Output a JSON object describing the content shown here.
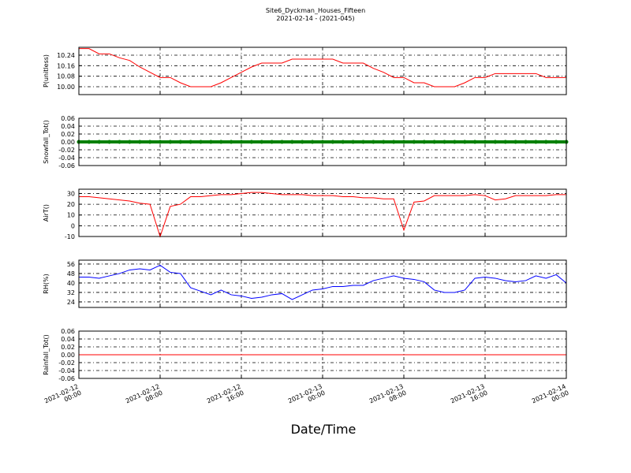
{
  "title": "Site6_Dyckman_Houses_Fifteen",
  "subtitle": "2021-02-14 - (2021-045)",
  "xlabel": "Date/Time",
  "chart_data": [
    {
      "type": "line",
      "ylabel": "P(unitless)",
      "ylim": [
        9.94,
        10.3
      ],
      "yticks": [
        {
          "value": 10.0,
          "label": "10.00"
        },
        {
          "value": 10.08,
          "label": "10.08"
        },
        {
          "value": 10.16,
          "label": "10.16"
        },
        {
          "value": 10.24,
          "label": "10.24"
        }
      ],
      "xlim": [
        "2021-02-12 00:00",
        "2021-02-14 00:00"
      ],
      "grid": true,
      "x": [
        "2021-02-12 00:00",
        "2021-02-12 01:00",
        "2021-02-12 02:00",
        "2021-02-12 03:00",
        "2021-02-12 04:00",
        "2021-02-12 05:00",
        "2021-02-12 06:00",
        "2021-02-12 07:00",
        "2021-02-12 08:00",
        "2021-02-12 09:00",
        "2021-02-12 10:00",
        "2021-02-12 11:00",
        "2021-02-12 12:00",
        "2021-02-12 13:00",
        "2021-02-12 14:00",
        "2021-02-12 15:00",
        "2021-02-12 16:00",
        "2021-02-12 17:00",
        "2021-02-12 18:00",
        "2021-02-12 19:00",
        "2021-02-12 20:00",
        "2021-02-12 21:00",
        "2021-02-12 22:00",
        "2021-02-12 23:00",
        "2021-02-13 00:00",
        "2021-02-13 01:00",
        "2021-02-13 02:00",
        "2021-02-13 03:00",
        "2021-02-13 04:00",
        "2021-02-13 05:00",
        "2021-02-13 06:00",
        "2021-02-13 07:00",
        "2021-02-13 08:00",
        "2021-02-13 09:00",
        "2021-02-13 10:00",
        "2021-02-13 11:00",
        "2021-02-13 12:00",
        "2021-02-13 13:00",
        "2021-02-13 14:00",
        "2021-02-13 15:00",
        "2021-02-13 16:00",
        "2021-02-13 17:00",
        "2021-02-13 18:00",
        "2021-02-13 19:00",
        "2021-02-13 20:00",
        "2021-02-13 21:00",
        "2021-02-13 22:00",
        "2021-02-13 23:00",
        "2021-02-14 00:00"
      ],
      "series": [
        {
          "color": "#ff0000",
          "values": [
            10.29,
            10.29,
            10.25,
            10.25,
            10.22,
            10.2,
            10.15,
            10.11,
            10.07,
            10.07,
            10.03,
            10.0,
            10.0,
            10.0,
            10.03,
            10.07,
            10.11,
            10.15,
            10.18,
            10.18,
            10.18,
            10.21,
            10.21,
            10.21,
            10.21,
            10.21,
            10.18,
            10.18,
            10.18,
            10.14,
            10.11,
            10.07,
            10.07,
            10.03,
            10.03,
            10.0,
            10.0,
            10.0,
            10.03,
            10.07,
            10.07,
            10.1,
            10.1,
            10.1,
            10.1,
            10.1,
            10.07,
            10.07,
            10.07
          ]
        }
      ]
    },
    {
      "type": "scatter",
      "ylabel": "Snowfall_Tot()",
      "ylim": [
        -0.06,
        0.06
      ],
      "yticks": [
        -0.06,
        -0.04,
        -0.02,
        {
          "value": 0,
          "label": "0.00"
        },
        0.02,
        0.04,
        0.06
      ],
      "xlim": [
        "2021-02-12 00:00",
        "2021-02-14 00:00"
      ],
      "grid": true,
      "x": [
        "2021-02-12 00:00",
        "2021-02-12 01:00",
        "2021-02-12 02:00",
        "2021-02-12 03:00",
        "2021-02-12 04:00",
        "2021-02-12 05:00",
        "2021-02-12 06:00",
        "2021-02-12 07:00",
        "2021-02-12 08:00",
        "2021-02-12 09:00",
        "2021-02-12 10:00",
        "2021-02-12 11:00",
        "2021-02-12 12:00",
        "2021-02-12 13:00",
        "2021-02-12 14:00",
        "2021-02-12 15:00",
        "2021-02-12 16:00",
        "2021-02-12 17:00",
        "2021-02-12 18:00",
        "2021-02-12 19:00",
        "2021-02-12 20:00",
        "2021-02-12 21:00",
        "2021-02-12 22:00",
        "2021-02-12 23:00",
        "2021-02-13 00:00",
        "2021-02-13 01:00",
        "2021-02-13 02:00",
        "2021-02-13 03:00",
        "2021-02-13 04:00",
        "2021-02-13 05:00",
        "2021-02-13 06:00",
        "2021-02-13 07:00",
        "2021-02-13 08:00",
        "2021-02-13 09:00",
        "2021-02-13 10:00",
        "2021-02-13 11:00",
        "2021-02-13 12:00",
        "2021-02-13 13:00",
        "2021-02-13 14:00",
        "2021-02-13 15:00",
        "2021-02-13 16:00",
        "2021-02-13 17:00",
        "2021-02-13 18:00",
        "2021-02-13 19:00",
        "2021-02-13 20:00",
        "2021-02-13 21:00",
        "2021-02-13 22:00",
        "2021-02-13 23:00",
        "2021-02-14 00:00"
      ],
      "series": [
        {
          "color": "#008000",
          "values": [
            0,
            0,
            0,
            0,
            0,
            0,
            0,
            0,
            0,
            0,
            0,
            0,
            0,
            0,
            0,
            0,
            0,
            0,
            0,
            0,
            0,
            0,
            0,
            0,
            0,
            0,
            0,
            0,
            0,
            0,
            0,
            0,
            0,
            0,
            0,
            0,
            0,
            0,
            0,
            0,
            0,
            0,
            0,
            0,
            0,
            0,
            0,
            0,
            0
          ]
        }
      ]
    },
    {
      "type": "line",
      "ylabel": "AirT()",
      "ylim": [
        -10,
        34
      ],
      "yticks": [
        -10,
        0,
        10,
        20,
        30
      ],
      "xlim": [
        "2021-02-12 00:00",
        "2021-02-14 00:00"
      ],
      "grid": true,
      "x": [
        "2021-02-12 00:00",
        "2021-02-12 01:00",
        "2021-02-12 02:00",
        "2021-02-12 03:00",
        "2021-02-12 04:00",
        "2021-02-12 05:00",
        "2021-02-12 06:00",
        "2021-02-12 07:00",
        "2021-02-12 08:00",
        "2021-02-12 09:00",
        "2021-02-12 10:00",
        "2021-02-12 11:00",
        "2021-02-12 12:00",
        "2021-02-12 13:00",
        "2021-02-12 14:00",
        "2021-02-12 15:00",
        "2021-02-12 16:00",
        "2021-02-12 17:00",
        "2021-02-12 18:00",
        "2021-02-12 19:00",
        "2021-02-12 20:00",
        "2021-02-12 21:00",
        "2021-02-12 22:00",
        "2021-02-12 23:00",
        "2021-02-13 00:00",
        "2021-02-13 01:00",
        "2021-02-13 02:00",
        "2021-02-13 03:00",
        "2021-02-13 04:00",
        "2021-02-13 05:00",
        "2021-02-13 06:00",
        "2021-02-13 07:00",
        "2021-02-13 08:00",
        "2021-02-13 09:00",
        "2021-02-13 10:00",
        "2021-02-13 11:00",
        "2021-02-13 12:00",
        "2021-02-13 13:00",
        "2021-02-13 14:00",
        "2021-02-13 15:00",
        "2021-02-13 16:00",
        "2021-02-13 17:00",
        "2021-02-13 18:00",
        "2021-02-13 19:00",
        "2021-02-13 20:00",
        "2021-02-13 21:00",
        "2021-02-13 22:00",
        "2021-02-13 23:00",
        "2021-02-14 00:00"
      ],
      "series": [
        {
          "color": "#ff0000",
          "values": [
            27,
            27,
            26,
            25,
            24,
            23,
            21,
            20,
            -10,
            18,
            20,
            27,
            27,
            28,
            29,
            29,
            30,
            31,
            31,
            30,
            29,
            29,
            29,
            28,
            28,
            28,
            27,
            27,
            26,
            26,
            25,
            25,
            -4,
            22,
            23,
            28,
            28,
            28,
            28,
            29,
            28,
            24,
            25,
            28,
            28,
            28,
            28,
            29,
            29
          ]
        }
      ]
    },
    {
      "type": "line",
      "ylabel": "RH(%)",
      "ylim": [
        19.3,
        59.3
      ],
      "yticks": [
        24,
        32,
        40,
        48,
        56
      ],
      "xlim": [
        "2021-02-12 00:00",
        "2021-02-14 00:00"
      ],
      "grid": true,
      "x": [
        "2021-02-12 00:00",
        "2021-02-12 01:00",
        "2021-02-12 02:00",
        "2021-02-12 03:00",
        "2021-02-12 04:00",
        "2021-02-12 05:00",
        "2021-02-12 06:00",
        "2021-02-12 07:00",
        "2021-02-12 08:00",
        "2021-02-12 09:00",
        "2021-02-12 10:00",
        "2021-02-12 11:00",
        "2021-02-12 12:00",
        "2021-02-12 13:00",
        "2021-02-12 14:00",
        "2021-02-12 15:00",
        "2021-02-12 16:00",
        "2021-02-12 17:00",
        "2021-02-12 18:00",
        "2021-02-12 19:00",
        "2021-02-12 20:00",
        "2021-02-12 21:00",
        "2021-02-12 22:00",
        "2021-02-12 23:00",
        "2021-02-13 00:00",
        "2021-02-13 01:00",
        "2021-02-13 02:00",
        "2021-02-13 03:00",
        "2021-02-13 04:00",
        "2021-02-13 05:00",
        "2021-02-13 06:00",
        "2021-02-13 07:00",
        "2021-02-13 08:00",
        "2021-02-13 09:00",
        "2021-02-13 10:00",
        "2021-02-13 11:00",
        "2021-02-13 12:00",
        "2021-02-13 13:00",
        "2021-02-13 14:00",
        "2021-02-13 15:00",
        "2021-02-13 16:00",
        "2021-02-13 17:00",
        "2021-02-13 18:00",
        "2021-02-13 19:00",
        "2021-02-13 20:00",
        "2021-02-13 21:00",
        "2021-02-13 22:00",
        "2021-02-13 23:00",
        "2021-02-14 00:00"
      ],
      "series": [
        {
          "color": "#0000ff",
          "values": [
            45,
            45,
            44,
            46,
            48,
            51,
            52,
            51,
            55,
            49,
            48,
            36,
            33,
            30,
            34,
            30,
            29,
            27,
            28,
            30,
            31,
            26,
            30,
            34,
            35,
            37,
            37,
            38,
            38,
            42,
            44,
            46,
            44,
            43,
            41,
            34,
            32,
            32,
            34,
            44,
            45,
            44,
            42,
            41,
            42,
            46,
            44,
            47,
            40
          ]
        }
      ]
    },
    {
      "type": "line",
      "ylabel": "Rainfall_Tot()",
      "ylim": [
        -0.06,
        0.06
      ],
      "yticks": [
        -0.06,
        -0.04,
        -0.02,
        {
          "value": 0,
          "label": "0.00"
        },
        0.02,
        0.04,
        0.06
      ],
      "xlim": [
        "2021-02-12 00:00",
        "2021-02-14 00:00"
      ],
      "grid": true,
      "xticks": [
        {
          "value": "2021-02-12 00:00",
          "label": "2021-02-12\n00:00"
        },
        {
          "value": "2021-02-12 08:00",
          "label": "2021-02-12\n08:00"
        },
        {
          "value": "2021-02-12 16:00",
          "label": "2021-02-12\n16:00"
        },
        {
          "value": "2021-02-13 00:00",
          "label": "2021-02-13\n00:00"
        },
        {
          "value": "2021-02-13 08:00",
          "label": "2021-02-13\n08:00"
        },
        {
          "value": "2021-02-13 16:00",
          "label": "2021-02-13\n16:00"
        },
        {
          "value": "2021-02-14 00:00",
          "label": "2021-02-14\n00:00"
        }
      ],
      "x": [
        "2021-02-12 00:00",
        "2021-02-12 01:00",
        "2021-02-12 02:00",
        "2021-02-12 03:00",
        "2021-02-12 04:00",
        "2021-02-12 05:00",
        "2021-02-12 06:00",
        "2021-02-12 07:00",
        "2021-02-12 08:00",
        "2021-02-12 09:00",
        "2021-02-12 10:00",
        "2021-02-12 11:00",
        "2021-02-12 12:00",
        "2021-02-12 13:00",
        "2021-02-12 14:00",
        "2021-02-12 15:00",
        "2021-02-12 16:00",
        "2021-02-12 17:00",
        "2021-02-12 18:00",
        "2021-02-12 19:00",
        "2021-02-12 20:00",
        "2021-02-12 21:00",
        "2021-02-12 22:00",
        "2021-02-12 23:00",
        "2021-02-13 00:00",
        "2021-02-13 01:00",
        "2021-02-13 02:00",
        "2021-02-13 03:00",
        "2021-02-13 04:00",
        "2021-02-13 05:00",
        "2021-02-13 06:00",
        "2021-02-13 07:00",
        "2021-02-13 08:00",
        "2021-02-13 09:00",
        "2021-02-13 10:00",
        "2021-02-13 11:00",
        "2021-02-13 12:00",
        "2021-02-13 13:00",
        "2021-02-13 14:00",
        "2021-02-13 15:00",
        "2021-02-13 16:00",
        "2021-02-13 17:00",
        "2021-02-13 18:00",
        "2021-02-13 19:00",
        "2021-02-13 20:00",
        "2021-02-13 21:00",
        "2021-02-13 22:00",
        "2021-02-13 23:00",
        "2021-02-14 00:00"
      ],
      "series": [
        {
          "color": "#ff0000",
          "values": [
            0,
            0,
            0,
            0,
            0,
            0,
            0,
            0,
            0,
            0,
            0,
            0,
            0,
            0,
            0,
            0,
            0,
            0,
            0,
            0,
            0,
            0,
            0,
            0,
            0,
            0,
            0,
            0,
            0,
            0,
            0,
            0,
            0,
            0,
            0,
            0,
            0,
            0,
            0,
            0,
            0,
            0,
            0,
            0,
            0,
            0,
            0,
            0,
            0
          ]
        }
      ]
    }
  ]
}
